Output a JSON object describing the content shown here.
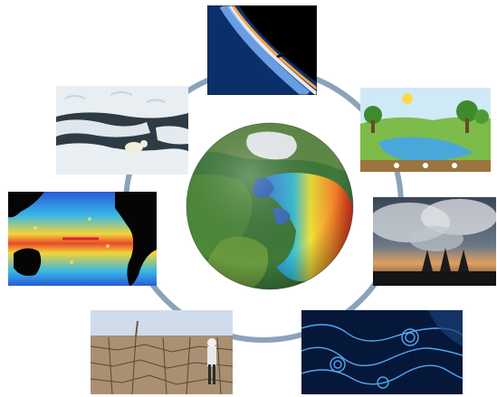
{
  "figure": {
    "panels": [
      {
        "key": "earth-limb",
        "subject": "earth-horizon-from-orbit"
      },
      {
        "key": "ecosystem",
        "subject": "ecosystem-water-cycle-diagram"
      },
      {
        "key": "smokestacks",
        "subject": "power-plant-emissions"
      },
      {
        "key": "ocean-eddies",
        "subject": "ocean-current-visualization"
      },
      {
        "key": "drought",
        "subject": "drought-cracked-earth"
      },
      {
        "key": "sst-map",
        "subject": "sea-surface-temperature-map"
      },
      {
        "key": "sea-ice",
        "subject": "polar-bear-on-sea-ice"
      }
    ],
    "center": {
      "subject": "climate-model-globe"
    },
    "colors": {
      "ring": "#7f9bb5",
      "sea_ice": "#dfe8ef",
      "ocean_dark": "#0a1a3a",
      "drought_soil": "#a99073"
    }
  }
}
